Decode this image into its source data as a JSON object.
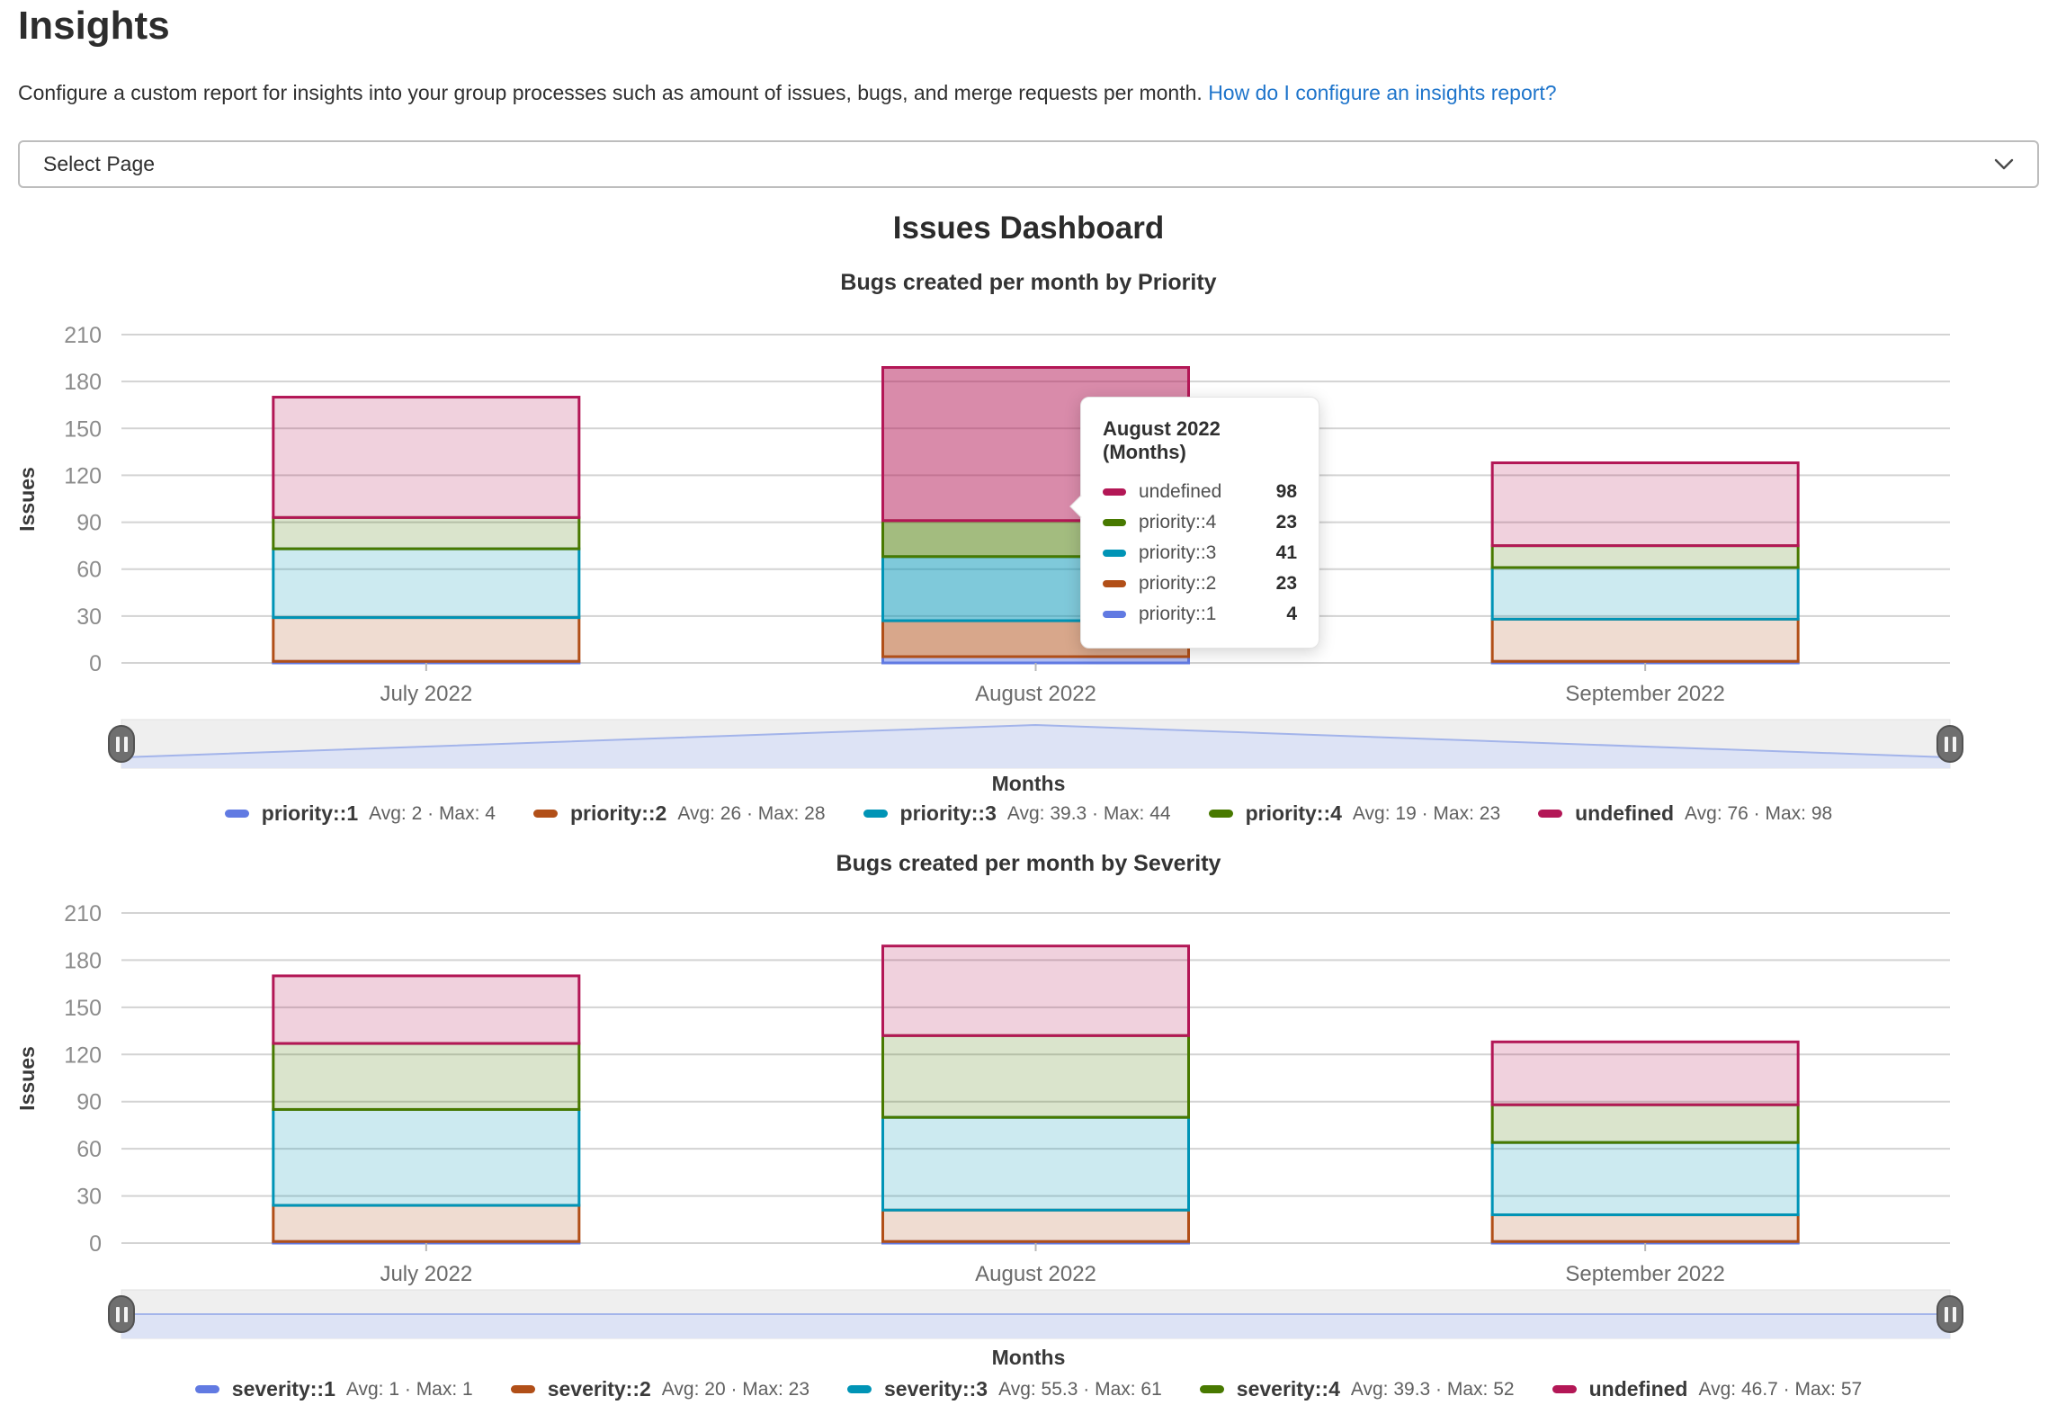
{
  "page": {
    "title": "Insights",
    "description": "Configure a custom report for insights into your group processes such as amount of issues, bugs, and merge requests per month.",
    "help_link": "How do I configure an insights report?",
    "select_value": "Select Page",
    "dashboard_title": "Issues Dashboard"
  },
  "colors": {
    "series_blue": "#617ae2",
    "series_orange": "#b14f18",
    "series_teal": "#0094b6",
    "series_green": "#487900",
    "series_magenta": "#b31756",
    "link_blue": "#1f75cb",
    "gridline": "#d3d3d3",
    "datazoom_fill": "#dde3f5",
    "datazoom_line": "#a3b4ea"
  },
  "chart_data": [
    {
      "type": "bar",
      "stacked": true,
      "title": "Bugs created per month by Priority",
      "xlabel": "Months",
      "ylabel": "Issues",
      "ylim": [
        0,
        210
      ],
      "ytick_step": 30,
      "grid": true,
      "legend_position": "bottom",
      "categories": [
        "July 2022",
        "August 2022",
        "September 2022"
      ],
      "highlighted_category": 1,
      "series": [
        {
          "name": "priority::1",
          "color": "#617ae2",
          "values": [
            1,
            4,
            1
          ],
          "stats": "Avg: 2 · Max: 4"
        },
        {
          "name": "priority::2",
          "color": "#b14f18",
          "values": [
            28,
            23,
            27
          ],
          "stats": "Avg: 26 · Max: 28"
        },
        {
          "name": "priority::3",
          "color": "#0094b6",
          "values": [
            44,
            41,
            33
          ],
          "stats": "Avg: 39.3 · Max: 44"
        },
        {
          "name": "priority::4",
          "color": "#487900",
          "values": [
            20,
            23,
            14
          ],
          "stats": "Avg: 19 · Max: 23"
        },
        {
          "name": "undefined",
          "color": "#b31756",
          "values": [
            77,
            98,
            53
          ],
          "stats": "Avg: 76 · Max: 98"
        }
      ]
    },
    {
      "type": "bar",
      "stacked": true,
      "title": "Bugs created per month by Severity",
      "xlabel": "Months",
      "ylabel": "Issues",
      "ylim": [
        0,
        210
      ],
      "ytick_step": 30,
      "grid": true,
      "legend_position": "bottom",
      "categories": [
        "July 2022",
        "August 2022",
        "September 2022"
      ],
      "highlighted_category": -1,
      "series": [
        {
          "name": "severity::1",
          "color": "#617ae2",
          "values": [
            1,
            1,
            1
          ],
          "stats": "Avg: 1 · Max: 1"
        },
        {
          "name": "severity::2",
          "color": "#b14f18",
          "values": [
            23,
            20,
            17
          ],
          "stats": "Avg: 20 · Max: 23"
        },
        {
          "name": "severity::3",
          "color": "#0094b6",
          "values": [
            61,
            59,
            46
          ],
          "stats": "Avg: 55.3 · Max: 61"
        },
        {
          "name": "severity::4",
          "color": "#487900",
          "values": [
            42,
            52,
            24
          ],
          "stats": "Avg: 39.3 · Max: 52"
        },
        {
          "name": "undefined",
          "color": "#b31756",
          "values": [
            43,
            57,
            40
          ],
          "stats": "Avg: 46.7 · Max: 57"
        }
      ]
    }
  ],
  "tooltip": {
    "title": "August 2022 (Months)",
    "rows": [
      {
        "name": "undefined",
        "color": "#b31756",
        "value": "98"
      },
      {
        "name": "priority::4",
        "color": "#487900",
        "value": "23"
      },
      {
        "name": "priority::3",
        "color": "#0094b6",
        "value": "41"
      },
      {
        "name": "priority::2",
        "color": "#b14f18",
        "value": "23"
      },
      {
        "name": "priority::1",
        "color": "#617ae2",
        "value": "4"
      }
    ]
  }
}
